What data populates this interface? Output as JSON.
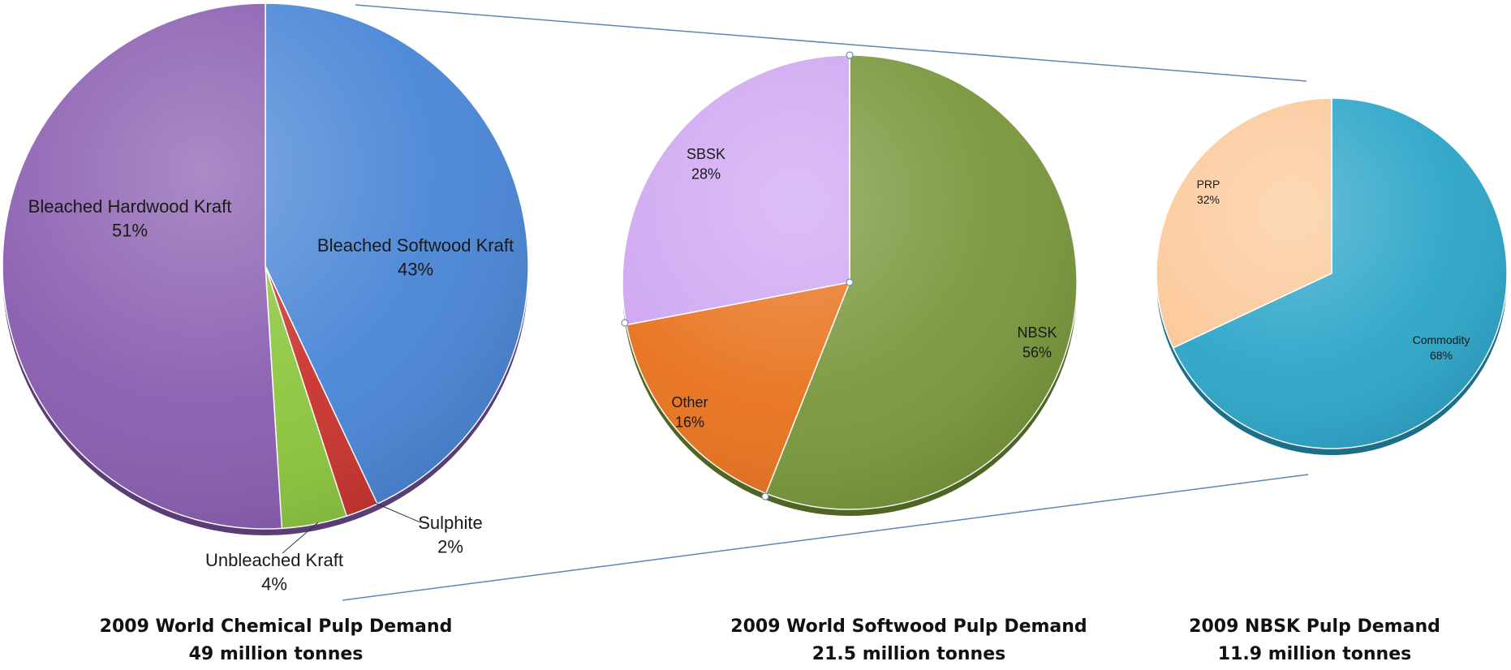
{
  "chart_data": [
    {
      "type": "pie",
      "title": "2009 World Chemical Pulp Demand",
      "subtitle": "49 million tonnes",
      "slices": [
        {
          "name": "Bleached Softwood Kraft",
          "value": 43,
          "label": "43%",
          "color": "#4a86d6"
        },
        {
          "name": "Sulphite",
          "value": 2,
          "label": "2%",
          "color": "#c9342f"
        },
        {
          "name": "Unbleached Kraft",
          "value": 4,
          "label": "4%",
          "color": "#8dc63f"
        },
        {
          "name": "Bleached Hardwood Kraft",
          "value": 51,
          "label": "51%",
          "color": "#8a5db0"
        }
      ]
    },
    {
      "type": "pie",
      "title": "2009 World Softwood Pulp Demand",
      "subtitle": "21.5 million tonnes",
      "slices": [
        {
          "name": "NBSK",
          "value": 56,
          "label": "56%",
          "color": "#79973c"
        },
        {
          "name": "Other",
          "value": 16,
          "label": "16%",
          "color": "#e8731e"
        },
        {
          "name": "SBSK",
          "value": 28,
          "label": "28%",
          "color": "#cfa6f2"
        }
      ]
    },
    {
      "type": "pie",
      "title": "2009 NBSK Pulp Demand",
      "subtitle": "11.9 million tonnes",
      "slices": [
        {
          "name": "Commodity",
          "value": 68,
          "label": "68%",
          "color": "#2ea6c9"
        },
        {
          "name": "PRP",
          "value": 32,
          "label": "32%",
          "color": "#fcc99a"
        }
      ]
    }
  ]
}
